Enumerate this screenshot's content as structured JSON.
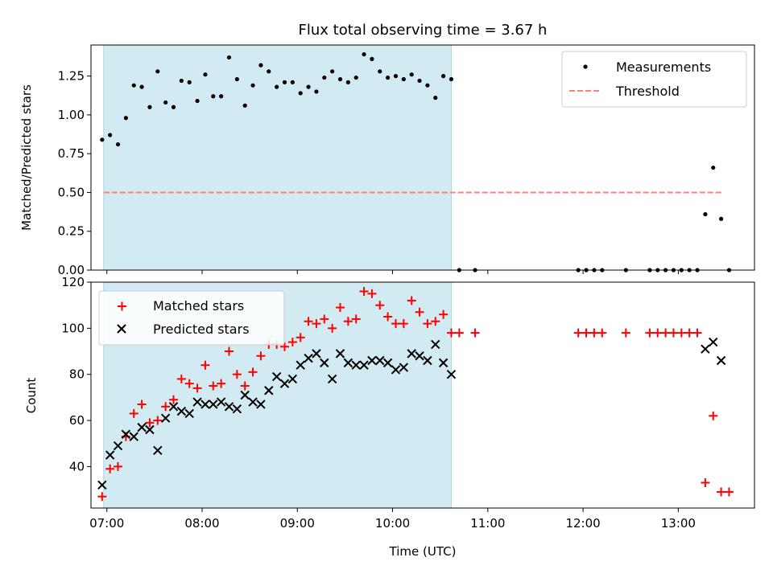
{
  "figure": {
    "title": "Flux total observing time = 3.67 h",
    "xlabel": "Time (UTC)"
  },
  "colors": {
    "shade": "#add8e6",
    "threshold": "#ff7f7f",
    "matched": "#ff0000",
    "predicted": "#000000",
    "measurement": "#000000"
  },
  "chart_data": [
    {
      "type": "scatter",
      "ylabel": "Matched/Predicted stars",
      "ylim": [
        0,
        1.45
      ],
      "xlim": [
        "06:50",
        "13:48"
      ],
      "yticks": [
        "0.00",
        "0.25",
        "0.50",
        "0.75",
        "1.00",
        "1.25"
      ],
      "shaded_span": [
        "06:58",
        "10:37"
      ],
      "legend": {
        "position": "top-right",
        "entries": [
          "Measurements",
          "Threshold"
        ]
      },
      "threshold": {
        "name": "Threshold",
        "value": 0.5,
        "x_range": [
          "06:58",
          "13:28"
        ]
      },
      "series": [
        {
          "name": "Measurements",
          "x": [
            "06:57",
            "07:02",
            "07:07",
            "07:12",
            "07:17",
            "07:22",
            "07:27",
            "07:32",
            "07:37",
            "07:42",
            "07:47",
            "07:52",
            "07:57",
            "08:02",
            "08:07",
            "08:12",
            "08:17",
            "08:22",
            "08:27",
            "08:32",
            "08:37",
            "08:42",
            "08:47",
            "08:52",
            "08:57",
            "09:02",
            "09:07",
            "09:12",
            "09:17",
            "09:22",
            "09:27",
            "09:32",
            "09:37",
            "09:42",
            "09:47",
            "09:52",
            "09:57",
            "10:02",
            "10:07",
            "10:12",
            "10:17",
            "10:22",
            "10:27",
            "10:32",
            "10:37",
            "10:42",
            "10:52",
            "11:57",
            "12:02",
            "12:07",
            "12:12",
            "12:27",
            "12:42",
            "12:47",
            "12:52",
            "12:57",
            "13:02",
            "13:07",
            "13:12",
            "13:17",
            "13:22",
            "13:27",
            "13:32"
          ],
          "y": [
            0.84,
            0.87,
            0.81,
            0.98,
            1.19,
            1.18,
            1.05,
            1.28,
            1.08,
            1.05,
            1.22,
            1.21,
            1.09,
            1.26,
            1.12,
            1.12,
            1.37,
            1.23,
            1.06,
            1.19,
            1.32,
            1.28,
            1.18,
            1.21,
            1.21,
            1.14,
            1.18,
            1.15,
            1.24,
            1.28,
            1.23,
            1.21,
            1.24,
            1.39,
            1.36,
            1.28,
            1.24,
            1.25,
            1.23,
            1.26,
            1.22,
            1.19,
            1.11,
            1.25,
            1.23,
            0,
            0,
            0,
            0,
            0,
            0,
            0,
            0,
            0,
            0,
            0,
            0,
            0,
            0,
            0.36,
            0.66,
            0.33,
            0
          ]
        }
      ]
    },
    {
      "type": "scatter",
      "ylabel": "Count",
      "xlabel": "Time (UTC)",
      "ylim": [
        22,
        120
      ],
      "xlim": [
        "06:50",
        "13:48"
      ],
      "yticks": [
        "40",
        "60",
        "80",
        "100",
        "120"
      ],
      "xticks": [
        "07:00",
        "08:00",
        "09:00",
        "10:00",
        "11:00",
        "12:00",
        "13:00"
      ],
      "shaded_span": [
        "06:58",
        "10:37"
      ],
      "legend": {
        "position": "top-left",
        "entries": [
          "Matched stars",
          "Predicted stars"
        ]
      },
      "series": [
        {
          "name": "Matched stars",
          "x": [
            "06:57",
            "07:02",
            "07:07",
            "07:12",
            "07:17",
            "07:22",
            "07:27",
            "07:32",
            "07:37",
            "07:42",
            "07:47",
            "07:52",
            "07:57",
            "08:02",
            "08:07",
            "08:12",
            "08:17",
            "08:22",
            "08:27",
            "08:32",
            "08:37",
            "08:42",
            "08:47",
            "08:52",
            "08:57",
            "09:02",
            "09:07",
            "09:12",
            "09:17",
            "09:22",
            "09:27",
            "09:32",
            "09:37",
            "09:42",
            "09:47",
            "09:52",
            "09:57",
            "10:02",
            "10:07",
            "10:12",
            "10:17",
            "10:22",
            "10:27",
            "10:32",
            "10:37",
            "10:42",
            "10:52",
            "11:57",
            "12:02",
            "12:07",
            "12:12",
            "12:27",
            "12:42",
            "12:47",
            "12:52",
            "12:57",
            "13:02",
            "13:07",
            "13:12",
            "13:17",
            "13:22",
            "13:27",
            "13:32"
          ],
          "y": [
            27,
            39,
            40,
            53,
            63,
            67,
            59,
            60,
            66,
            69,
            78,
            76,
            74,
            84,
            75,
            76,
            90,
            80,
            75,
            81,
            88,
            93,
            93,
            92,
            94,
            96,
            103,
            102,
            104,
            100,
            109,
            103,
            104,
            116,
            115,
            110,
            105,
            102,
            102,
            112,
            107,
            102,
            103,
            106,
            98,
            98,
            98,
            98,
            98,
            98,
            98,
            98,
            98,
            98,
            98,
            98,
            98,
            98,
            98,
            33,
            62,
            29,
            29
          ]
        },
        {
          "name": "Predicted stars",
          "x": [
            "06:57",
            "07:02",
            "07:07",
            "07:12",
            "07:17",
            "07:22",
            "07:27",
            "07:32",
            "07:37",
            "07:42",
            "07:47",
            "07:52",
            "07:57",
            "08:02",
            "08:07",
            "08:12",
            "08:17",
            "08:22",
            "08:27",
            "08:32",
            "08:37",
            "08:42",
            "08:47",
            "08:52",
            "08:57",
            "09:02",
            "09:07",
            "09:12",
            "09:17",
            "09:22",
            "09:27",
            "09:32",
            "09:37",
            "09:42",
            "09:47",
            "09:52",
            "09:57",
            "10:02",
            "10:07",
            "10:12",
            "10:17",
            "10:22",
            "10:27",
            "10:32",
            "10:37",
            "13:17",
            "13:22",
            "13:27"
          ],
          "y": [
            32,
            45,
            49,
            54,
            53,
            57,
            56,
            47,
            61,
            66,
            64,
            63,
            68,
            67,
            67,
            68,
            66,
            65,
            71,
            68,
            67,
            73,
            79,
            76,
            78,
            84,
            87,
            89,
            85,
            78,
            89,
            85,
            84,
            84,
            86,
            86,
            85,
            82,
            83,
            89,
            88,
            86,
            93,
            85,
            80,
            91,
            94,
            86
          ]
        }
      ]
    }
  ]
}
